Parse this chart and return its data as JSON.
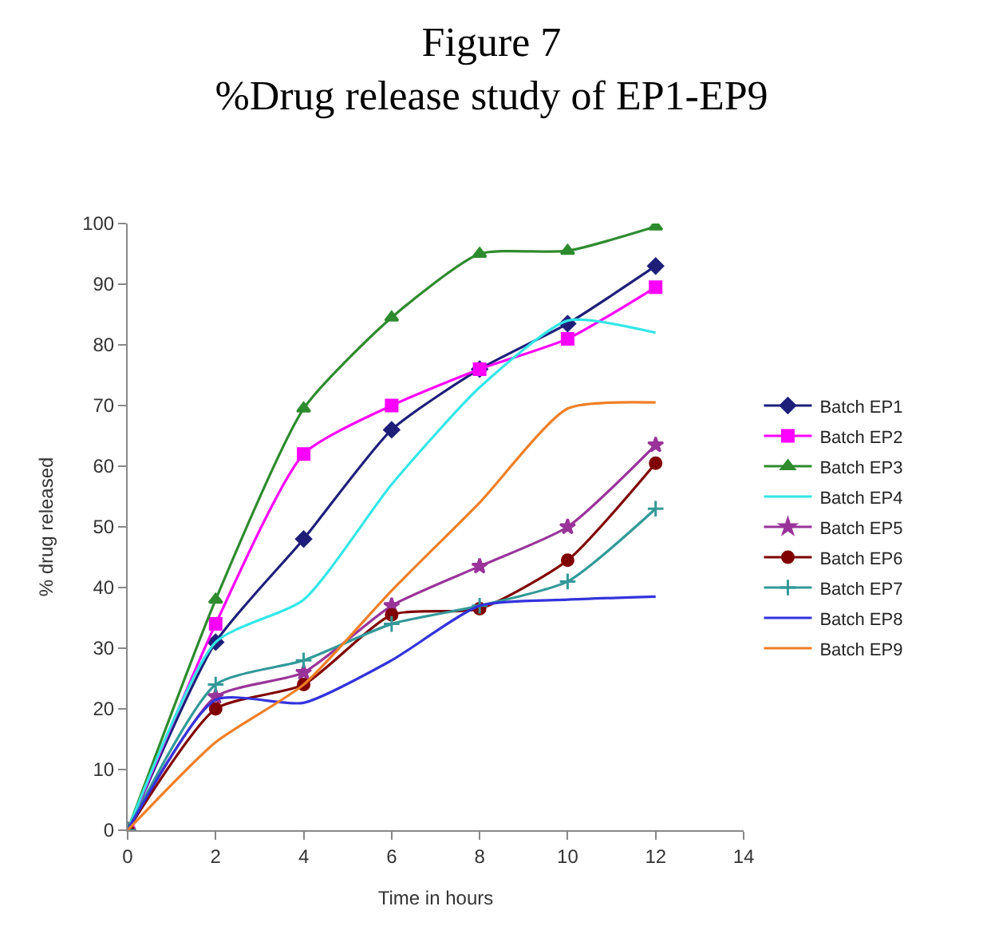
{
  "chart_data": {
    "type": "line",
    "title": "Figure 7\n%Drug release study of EP1-EP9",
    "xlabel": "Time in hours",
    "ylabel": "% drug released",
    "x": [
      0,
      2,
      4,
      6,
      8,
      10,
      12
    ],
    "series": [
      {
        "name": "Batch EP1",
        "color": "#1f1f7a",
        "marker": "diamond",
        "values": [
          0,
          31,
          48,
          66,
          76,
          83.5,
          93
        ]
      },
      {
        "name": "Batch EP2",
        "color": "#ff00ff",
        "marker": "square",
        "values": [
          0,
          34,
          62,
          70,
          76,
          81,
          89.5
        ]
      },
      {
        "name": "Batch EP3",
        "color": "#2e8b2e",
        "marker": "triangle",
        "values": [
          0,
          38,
          69.5,
          84.5,
          95,
          95.5,
          99.5
        ]
      },
      {
        "name": "Batch EP4",
        "color": "#33e6e6",
        "marker": "none",
        "values": [
          0,
          31,
          38,
          57,
          73,
          84,
          82
        ]
      },
      {
        "name": "Batch EP5",
        "color": "#993399",
        "marker": "star",
        "values": [
          0,
          22,
          26,
          37,
          43.5,
          50,
          63.5
        ]
      },
      {
        "name": "Batch EP6",
        "color": "#800000",
        "marker": "circle",
        "values": [
          0,
          20,
          24,
          35.5,
          36.5,
          44.5,
          60.5
        ]
      },
      {
        "name": "Batch EP7",
        "color": "#339999",
        "marker": "cross",
        "values": [
          0,
          24,
          28,
          34,
          37,
          41,
          53
        ]
      },
      {
        "name": "Batch EP8",
        "color": "#3333dd",
        "marker": "none",
        "values": [
          0,
          21.5,
          21,
          28,
          37,
          38,
          38.5
        ]
      },
      {
        "name": "Batch EP9",
        "color": "#f07f26",
        "marker": "none",
        "values": [
          0,
          14.5,
          24,
          39.5,
          54,
          69.5,
          70.5
        ]
      }
    ],
    "xlim": [
      0,
      14
    ],
    "xticks": [
      0,
      2,
      4,
      6,
      8,
      10,
      12,
      14
    ],
    "ylim": [
      0,
      100
    ],
    "yticks": [
      0,
      10,
      20,
      30,
      40,
      50,
      60,
      70,
      80,
      90,
      100
    ],
    "legend": "right",
    "line_style": "solid"
  }
}
